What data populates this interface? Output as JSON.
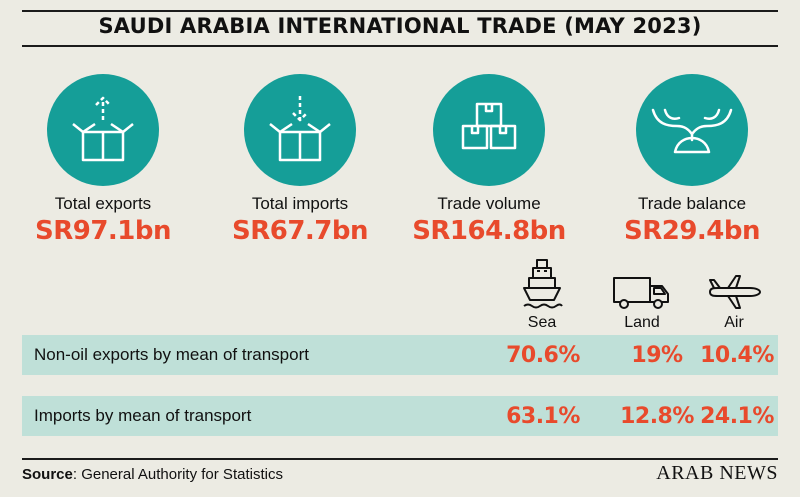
{
  "title": "SAUDI ARABIA INTERNATIONAL TRADE (MAY 2023)",
  "colors": {
    "teal": "#159e98",
    "accent": "#e84a2c",
    "row_bg": "#bfe0d8",
    "background": "#ecebe3"
  },
  "stats": [
    {
      "icon": "box-export-icon",
      "label": "Total exports",
      "value": "SR97.1bn"
    },
    {
      "icon": "box-import-icon",
      "label": "Total imports",
      "value": "SR67.7bn"
    },
    {
      "icon": "stacked-boxes-icon",
      "label": "Trade volume",
      "value": "SR164.8bn"
    },
    {
      "icon": "balance-scale-icon",
      "label": "Trade balance",
      "value": "SR29.4bn"
    }
  ],
  "modes": [
    {
      "icon": "ship-icon",
      "label": "Sea"
    },
    {
      "icon": "truck-icon",
      "label": "Land"
    },
    {
      "icon": "airplane-icon",
      "label": "Air"
    }
  ],
  "rows": [
    {
      "label": "Non-oil exports by mean of transport",
      "values": [
        "70.6%",
        "19%",
        "10.4%"
      ]
    },
    {
      "label": "Imports by mean of transport",
      "values": [
        "63.1%",
        "12.8%",
        "24.1%"
      ]
    }
  ],
  "footer": {
    "source_label": "Source",
    "source_text": ": General Authority for Statistics",
    "brand": "ARAB NEWS"
  }
}
